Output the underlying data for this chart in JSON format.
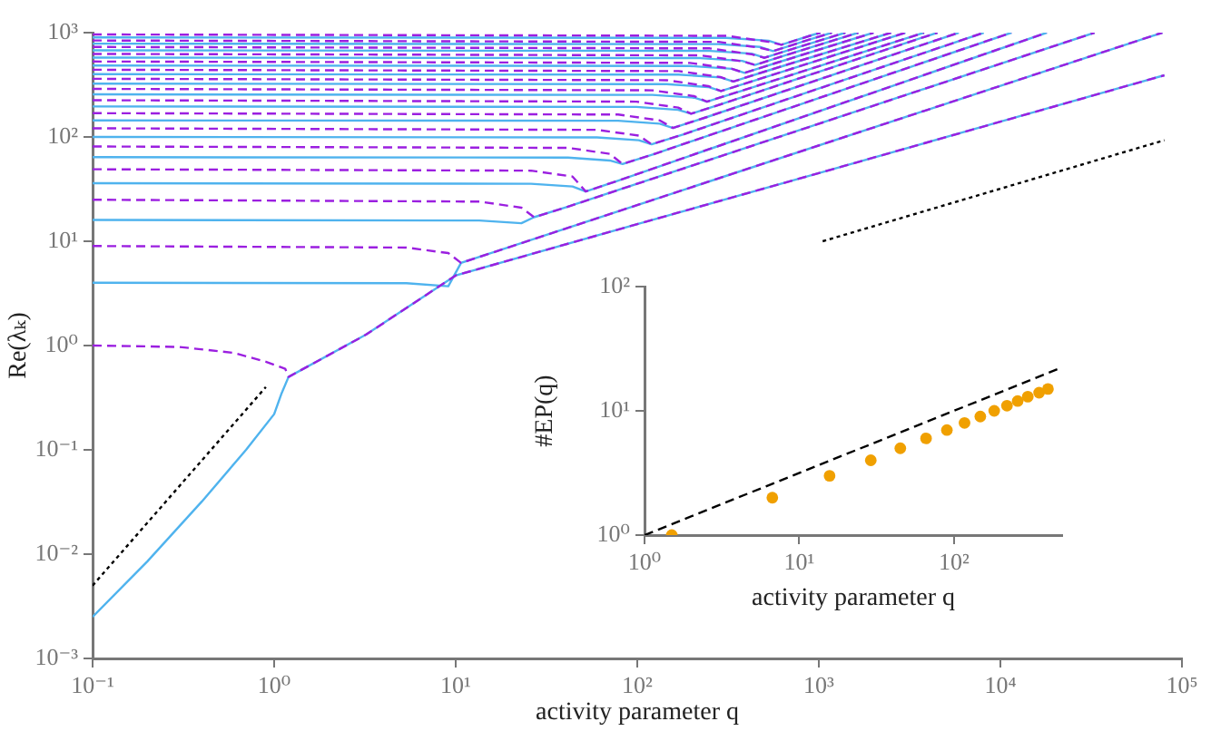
{
  "chart_data": [
    {
      "type": "line",
      "xlabel": "activity parameter q",
      "ylabel": "Re(λₖ)",
      "log": "xy",
      "marker": "none",
      "grid": false,
      "legend": false,
      "xlim": [
        0.1,
        100000
      ],
      "ylim": [
        0.001,
        1000
      ],
      "xticks": [
        {
          "value": 0.1,
          "label": "10⁻¹"
        },
        {
          "value": 1,
          "label": "10⁰"
        },
        {
          "value": 10,
          "label": "10¹"
        },
        {
          "value": 100,
          "label": "10²"
        },
        {
          "value": 1000,
          "label": "10³"
        },
        {
          "value": 10000,
          "label": "10⁴"
        },
        {
          "value": 100000,
          "label": "10⁵"
        }
      ],
      "yticks": [
        {
          "value": 0.001,
          "label": "10⁻³"
        },
        {
          "value": 0.01,
          "label": "10⁻²"
        },
        {
          "value": 0.1,
          "label": "10⁻¹"
        },
        {
          "value": 1,
          "label": "10⁰"
        },
        {
          "value": 10,
          "label": "10¹"
        },
        {
          "value": 100,
          "label": "10²"
        },
        {
          "value": 1000,
          "label": "10³"
        }
      ],
      "series": [
        {
          "color": "#4fb3ee",
          "line_style": "solid",
          "x": [
            0.1,
            0.2,
            0.4,
            0.7,
            1.0,
            1.1,
            1.2,
            3.2,
            10,
            100,
            1000,
            10000,
            80000
          ],
          "values": [
            0.0025,
            0.0085,
            0.032,
            0.1,
            0.22,
            0.35,
            0.5,
            1.27,
            4.7,
            14.6,
            45,
            140,
            390
          ]
        },
        {
          "color": "#4fb3ee",
          "line_style": "solid",
          "x": [
            0.1,
            5.35,
            9.1,
            10.7,
            16,
            78000
          ],
          "values": [
            4,
            3.96,
            3.7,
            6.2,
            7.8,
            1000
          ]
        },
        {
          "color": "#4fb3ee",
          "line_style": "solid",
          "x": [
            0.1,
            13.5,
            23,
            27,
            40,
            33000
          ],
          "values": [
            16,
            15.8,
            14.9,
            17,
            21,
            1000
          ]
        },
        {
          "color": "#4fb3ee",
          "line_style": "solid",
          "x": [
            0.1,
            26,
            44,
            52,
            78,
            18000
          ],
          "values": [
            36,
            35.6,
            33.5,
            30,
            38,
            1000
          ]
        },
        {
          "color": "#4fb3ee",
          "line_style": "solid",
          "x": [
            0.1,
            41.5,
            70.5,
            83,
            125,
            11500
          ],
          "values": [
            64,
            63.4,
            59.5,
            55,
            69,
            1000
          ]
        },
        {
          "color": "#4fb3ee",
          "line_style": "solid",
          "x": [
            0.1,
            60,
            102,
            120,
            180,
            8100
          ],
          "values": [
            100,
            99,
            93,
            85,
            106,
            1000
          ]
        },
        {
          "color": "#4fb3ee",
          "line_style": "solid",
          "x": [
            0.1,
            78.5,
            133,
            157,
            236,
            5900
          ],
          "values": [
            144,
            143,
            134,
            122,
            153,
            1000
          ]
        },
        {
          "color": "#4fb3ee",
          "line_style": "solid",
          "x": [
            0.1,
            99,
            168,
            198,
            297,
            4500
          ],
          "values": [
            196,
            194,
            182,
            167,
            209,
            1000
          ]
        },
        {
          "color": "#4fb3ee",
          "line_style": "solid",
          "x": [
            0.1,
            121,
            206,
            242,
            363,
            3800
          ],
          "values": [
            256,
            253,
            238,
            218,
            272,
            1000
          ]
        },
        {
          "color": "#4fb3ee",
          "line_style": "solid",
          "x": [
            0.1,
            145,
            246,
            289,
            434,
            3000
          ],
          "values": [
            324,
            321,
            301,
            275,
            344,
            1000
          ]
        },
        {
          "color": "#4fb3ee",
          "line_style": "solid",
          "x": [
            0.1,
            169,
            287,
            338,
            507,
            2500
          ],
          "values": [
            400,
            396,
            372,
            340,
            425,
            1000
          ]
        },
        {
          "color": "#4fb3ee",
          "line_style": "solid",
          "x": [
            0.1,
            195,
            332,
            390,
            585,
            2000
          ],
          "values": [
            484,
            479,
            450,
            411,
            514,
            1000
          ]
        },
        {
          "color": "#4fb3ee",
          "line_style": "solid",
          "x": [
            0.1,
            223,
            378,
            445,
            668,
            1650
          ],
          "values": [
            576,
            570,
            536,
            490,
            613,
            1000
          ]
        },
        {
          "color": "#4fb3ee",
          "line_style": "solid",
          "x": [
            0.1,
            251,
            427,
            502,
            753,
            1400
          ],
          "values": [
            676,
            669,
            629,
            574,
            718,
            1000
          ]
        },
        {
          "color": "#4fb3ee",
          "line_style": "solid",
          "x": [
            0.1,
            280,
            476,
            560,
            840,
            1180
          ],
          "values": [
            784,
            776,
            729,
            666,
            833,
            1000
          ]
        },
        {
          "color": "#4fb3ee",
          "line_style": "solid",
          "x": [
            0.1,
            311,
            529,
            622,
            933,
            1020
          ],
          "values": [
            900,
            891,
            837,
            765,
            956,
            1000
          ]
        },
        {
          "color": "#9b1fe0",
          "line_style": "dashed",
          "x": [
            0.1,
            0.3,
            0.6,
            0.9,
            1.15,
            1.2,
            3.2,
            10,
            100,
            1000,
            10000,
            80000
          ],
          "values": [
            1,
            0.97,
            0.85,
            0.7,
            0.6,
            0.5,
            1.27,
            4.7,
            14.6,
            45,
            140,
            390
          ]
        },
        {
          "color": "#9b1fe0",
          "line_style": "dashed",
          "x": [
            0.1,
            5.35,
            9.1,
            10.7,
            16,
            78000
          ],
          "values": [
            9,
            8.7,
            7.7,
            6.2,
            7.8,
            1000
          ]
        },
        {
          "color": "#9b1fe0",
          "line_style": "dashed",
          "x": [
            0.1,
            13.5,
            23,
            27,
            40,
            33000
          ],
          "values": [
            25,
            24,
            21,
            17,
            21,
            1000
          ]
        },
        {
          "color": "#9b1fe0",
          "line_style": "dashed",
          "x": [
            0.1,
            26,
            44,
            52,
            78,
            18000
          ],
          "values": [
            49,
            47.5,
            41.7,
            30,
            38,
            1000
          ]
        },
        {
          "color": "#9b1fe0",
          "line_style": "dashed",
          "x": [
            0.1,
            41.5,
            70.5,
            83,
            125,
            11500
          ],
          "values": [
            81,
            78.6,
            68.9,
            55,
            69,
            1000
          ]
        },
        {
          "color": "#9b1fe0",
          "line_style": "dashed",
          "x": [
            0.1,
            60,
            102,
            120,
            180,
            8100
          ],
          "values": [
            121,
            117,
            103,
            85,
            106,
            1000
          ]
        },
        {
          "color": "#9b1fe0",
          "line_style": "dashed",
          "x": [
            0.1,
            78.5,
            133,
            157,
            236,
            5900
          ],
          "values": [
            169,
            164,
            144,
            122,
            153,
            1000
          ]
        },
        {
          "color": "#9b1fe0",
          "line_style": "dashed",
          "x": [
            0.1,
            99,
            168,
            198,
            297,
            4500
          ],
          "values": [
            225,
            218,
            191,
            167,
            209,
            1000
          ]
        },
        {
          "color": "#9b1fe0",
          "line_style": "dashed",
          "x": [
            0.1,
            121,
            206,
            242,
            363,
            3800
          ],
          "values": [
            289,
            280,
            246,
            218,
            272,
            1000
          ]
        },
        {
          "color": "#9b1fe0",
          "line_style": "dashed",
          "x": [
            0.1,
            145,
            246,
            289,
            434,
            3000
          ],
          "values": [
            361,
            350,
            307,
            275,
            344,
            1000
          ]
        },
        {
          "color": "#9b1fe0",
          "line_style": "dashed",
          "x": [
            0.1,
            169,
            287,
            338,
            507,
            2500
          ],
          "values": [
            441,
            428,
            375,
            340,
            425,
            1000
          ]
        },
        {
          "color": "#9b1fe0",
          "line_style": "dashed",
          "x": [
            0.1,
            195,
            332,
            390,
            585,
            2000
          ],
          "values": [
            529,
            513,
            450,
            411,
            514,
            1000
          ]
        },
        {
          "color": "#9b1fe0",
          "line_style": "dashed",
          "x": [
            0.1,
            223,
            378,
            445,
            668,
            1650
          ],
          "values": [
            625,
            606,
            531,
            490,
            613,
            1000
          ]
        },
        {
          "color": "#9b1fe0",
          "line_style": "dashed",
          "x": [
            0.1,
            251,
            427,
            502,
            753,
            1400
          ],
          "values": [
            729,
            707,
            620,
            574,
            718,
            1000
          ]
        },
        {
          "color": "#9b1fe0",
          "line_style": "dashed",
          "x": [
            0.1,
            280,
            476,
            560,
            840,
            1180
          ],
          "values": [
            841,
            816,
            715,
            666,
            833,
            1000
          ]
        },
        {
          "color": "#9b1fe0",
          "line_style": "dashed",
          "x": [
            0.1,
            311,
            529,
            622,
            933,
            1020
          ],
          "values": [
            961,
            932,
            817,
            765,
            956,
            1000
          ]
        },
        {
          "color": "#000000",
          "line_style": "dotted",
          "x": [
            0.1,
            0.9
          ],
          "values": [
            0.005,
            0.4
          ]
        },
        {
          "color": "#000000",
          "line_style": "dotted",
          "x": [
            1050,
            80000
          ],
          "values": [
            10,
            93
          ]
        }
      ]
    },
    {
      "type": "scatter",
      "xlabel": "activity parameter q",
      "ylabel": "#EP(q)",
      "log": "xy",
      "marker": "circle",
      "grid": false,
      "legend": false,
      "xlim": [
        1,
        500
      ],
      "ylim": [
        1,
        100
      ],
      "xticks": [
        {
          "value": 1,
          "label": "10⁰"
        },
        {
          "value": 10,
          "label": "10¹"
        },
        {
          "value": 100,
          "label": "10²"
        }
      ],
      "yticks": [
        {
          "value": 1,
          "label": "10⁰"
        },
        {
          "value": 10,
          "label": "10¹"
        },
        {
          "value": 100,
          "label": "10²"
        }
      ],
      "series": [
        {
          "color": "#f0a000",
          "x": [
            1.5,
            6.7,
            15.7,
            29,
            45,
            66,
            90,
            117,
            148,
            182,
            220,
            258,
            300,
            355,
            405
          ],
          "values": [
            1,
            2,
            3,
            4,
            5,
            6,
            7,
            8,
            9,
            10,
            11,
            12,
            13,
            14,
            15
          ]
        },
        {
          "type": "line",
          "color": "#000000",
          "line_style": "dashed",
          "marker": "none",
          "x": [
            1,
            470
          ],
          "values": [
            1,
            21.7
          ]
        }
      ]
    }
  ]
}
